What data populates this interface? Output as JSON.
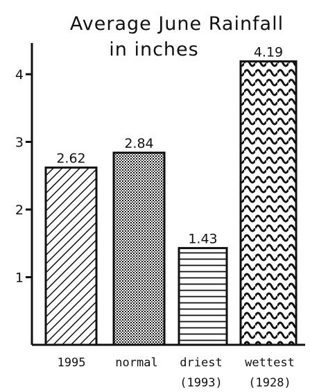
{
  "chart_data": {
    "type": "bar",
    "title": "Average June Rainfall",
    "subtitle": "in inches",
    "categories": [
      "1995",
      "normal",
      "driest",
      "wettest"
    ],
    "category_sublabels": [
      "",
      "",
      "(1993)",
      "(1928)"
    ],
    "values": [
      2.62,
      2.84,
      1.43,
      4.19
    ],
    "data_labels": [
      "2.62",
      "2.84",
      "1.43",
      "4.19"
    ],
    "bar_patterns": [
      "diagonal-hatch",
      "fine-grid",
      "horizontal-lines",
      "wavy-lines"
    ],
    "xlabel": "",
    "ylabel": "",
    "ylim": [
      0,
      4.5
    ],
    "yticks": [
      1,
      2,
      3,
      4
    ],
    "grid": false,
    "colors": {
      "ink": "#111111",
      "background": "#ffffff"
    }
  }
}
